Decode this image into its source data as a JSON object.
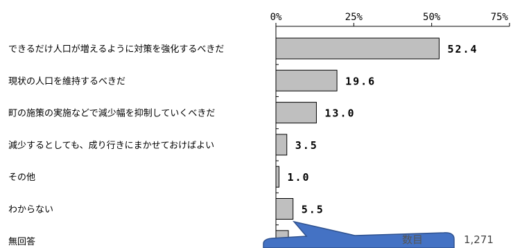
{
  "chart_data": {
    "type": "bar",
    "orientation": "horizontal",
    "categories": [
      "できるだけ人口が増えるように対策を強化するべきだ",
      "現状の人口を維持するべきだ",
      "町の施策の実施などで減少幅を抑制していくべきだ",
      "減少するとしても、成り行きにまかせておけばよい",
      "その他",
      "わからない",
      "無回答"
    ],
    "values": [
      52.4,
      19.6,
      13.0,
      3.5,
      1.0,
      5.5,
      4.0
    ],
    "value_labels": [
      "52.4",
      "19.6",
      "13.0",
      "3.5",
      "1.0",
      "5.5",
      ""
    ],
    "xlim": [
      0,
      75
    ],
    "xticks": [
      0,
      25,
      50,
      75
    ],
    "xtick_labels": [
      "0%",
      "25%",
      "50%",
      "75%"
    ],
    "axis_position": "top",
    "grid": false,
    "bar_color": "#bfbfbf",
    "bar_edge_color": "#000000"
  },
  "annotation": {
    "text_label": "数目",
    "text_value": "1,271",
    "callout_color": "#4472c4"
  }
}
